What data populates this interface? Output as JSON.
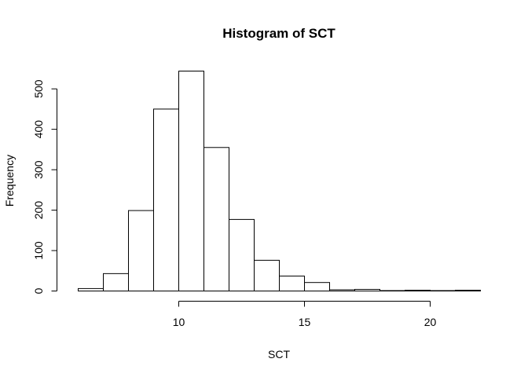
{
  "chart_data": {
    "type": "bar",
    "title": "Histogram of SCT",
    "xlabel": "SCT",
    "ylabel": "Frequency",
    "bins": [
      {
        "start": 6,
        "end": 7,
        "count": 6
      },
      {
        "start": 7,
        "end": 8,
        "count": 43
      },
      {
        "start": 8,
        "end": 9,
        "count": 199
      },
      {
        "start": 9,
        "end": 10,
        "count": 450
      },
      {
        "start": 10,
        "end": 11,
        "count": 544
      },
      {
        "start": 11,
        "end": 12,
        "count": 355
      },
      {
        "start": 12,
        "end": 13,
        "count": 177
      },
      {
        "start": 13,
        "end": 14,
        "count": 76
      },
      {
        "start": 14,
        "end": 15,
        "count": 37
      },
      {
        "start": 15,
        "end": 16,
        "count": 21
      },
      {
        "start": 16,
        "end": 17,
        "count": 3
      },
      {
        "start": 17,
        "end": 18,
        "count": 4
      },
      {
        "start": 18,
        "end": 19,
        "count": 1
      },
      {
        "start": 19,
        "end": 20,
        "count": 2
      },
      {
        "start": 20,
        "end": 21,
        "count": 1
      },
      {
        "start": 21,
        "end": 22,
        "count": 2
      }
    ],
    "xlim": [
      6,
      22
    ],
    "ylim": [
      0,
      544
    ],
    "x_ticks": [
      10,
      15,
      20
    ],
    "y_ticks": [
      0,
      100,
      200,
      300,
      400,
      500
    ],
    "grid": false,
    "legend": "none"
  }
}
